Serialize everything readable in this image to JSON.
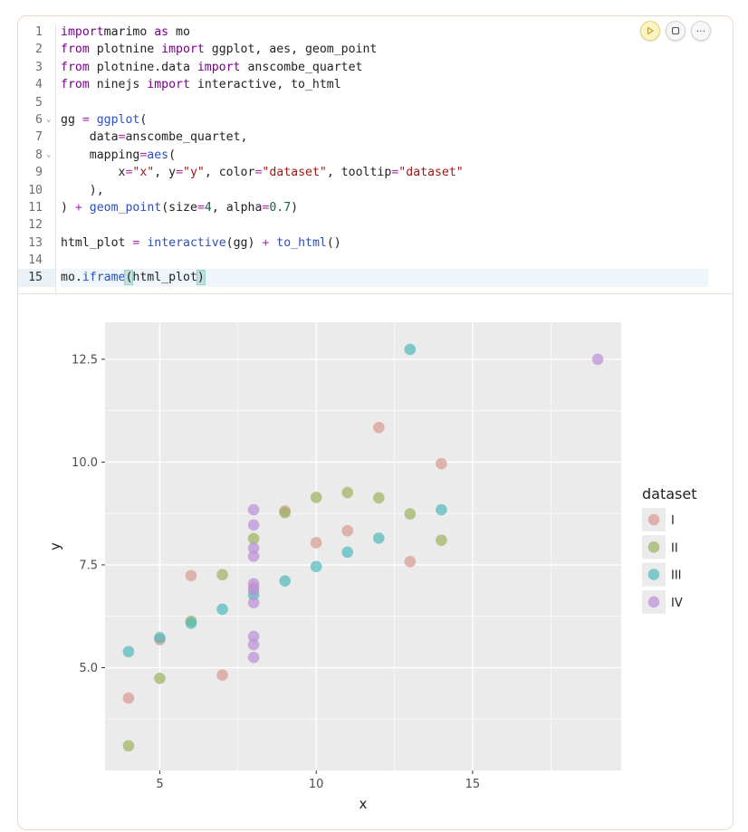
{
  "cell": {
    "actions": [
      {
        "name": "run-cell-button",
        "icon": "play-icon"
      },
      {
        "name": "stop-cell-button",
        "icon": "stop-icon"
      },
      {
        "name": "more-options-button",
        "icon": "ellipsis-icon",
        "label": "···"
      }
    ]
  },
  "editor": {
    "lines": [
      {
        "n": "1",
        "tokens": [
          [
            "kw",
            "import"
          ],
          [
            "",
            "marimo "
          ],
          [
            "kw",
            "as"
          ],
          [
            "",
            " mo"
          ]
        ]
      },
      {
        "n": "2",
        "tokens": [
          [
            "kw",
            "from"
          ],
          [
            "",
            " plotnine "
          ],
          [
            "kw",
            "import"
          ],
          [
            "",
            " ggplot, aes, geom_point"
          ]
        ]
      },
      {
        "n": "3",
        "tokens": [
          [
            "kw",
            "from"
          ],
          [
            "",
            " plotnine.data "
          ],
          [
            "kw",
            "import"
          ],
          [
            "",
            " anscombe_quartet"
          ]
        ]
      },
      {
        "n": "4",
        "tokens": [
          [
            "kw",
            "from"
          ],
          [
            "",
            " ninejs "
          ],
          [
            "kw",
            "import"
          ],
          [
            "",
            " interactive, to_html"
          ]
        ]
      },
      {
        "n": "5",
        "tokens": []
      },
      {
        "n": "6",
        "fold": true,
        "tokens": [
          [
            "",
            "gg "
          ],
          [
            "op",
            "="
          ],
          [
            " fn",
            " ggplot"
          ],
          [
            "",
            "("
          ]
        ]
      },
      {
        "n": "7",
        "tokens": [
          [
            "",
            "    data"
          ],
          [
            "op",
            "="
          ],
          [
            "",
            "anscombe_quartet,"
          ]
        ]
      },
      {
        "n": "8",
        "fold": true,
        "tokens": [
          [
            "",
            "    mapping"
          ],
          [
            "op",
            "="
          ],
          [
            "fn",
            "aes"
          ],
          [
            "",
            "("
          ]
        ]
      },
      {
        "n": "9",
        "tokens": [
          [
            "",
            "        x"
          ],
          [
            "op",
            "="
          ],
          [
            "str",
            "\"x\""
          ],
          [
            "",
            ", y"
          ],
          [
            "op",
            "="
          ],
          [
            "str",
            "\"y\""
          ],
          [
            "",
            ", color"
          ],
          [
            "op",
            "="
          ],
          [
            "str",
            "\"dataset\""
          ],
          [
            "",
            ", tooltip"
          ],
          [
            "op",
            "="
          ],
          [
            "str",
            "\"dataset\""
          ]
        ]
      },
      {
        "n": "10",
        "tokens": [
          [
            "",
            "    ),"
          ]
        ]
      },
      {
        "n": "11",
        "tokens": [
          [
            "",
            ") "
          ],
          [
            "op",
            "+"
          ],
          [
            "",
            " "
          ],
          [
            "fn",
            "geom_point"
          ],
          [
            "",
            "(size"
          ],
          [
            "op",
            "="
          ],
          [
            "num",
            "4"
          ],
          [
            "",
            ", alpha"
          ],
          [
            "op",
            "="
          ],
          [
            "num",
            "0.7"
          ],
          [
            "",
            ")"
          ]
        ]
      },
      {
        "n": "12",
        "tokens": []
      },
      {
        "n": "13",
        "tokens": [
          [
            "",
            "html_plot "
          ],
          [
            "op",
            "="
          ],
          [
            "",
            " "
          ],
          [
            "fn",
            "interactive"
          ],
          [
            "",
            "(gg) "
          ],
          [
            "op",
            "+"
          ],
          [
            "",
            " "
          ],
          [
            "fn",
            "to_html"
          ],
          [
            "",
            "()"
          ]
        ]
      },
      {
        "n": "14",
        "tokens": []
      },
      {
        "n": "15",
        "active": true,
        "tokens": [
          [
            "",
            "mo."
          ],
          [
            "fn",
            "iframe"
          ],
          [
            "br",
            "("
          ],
          [
            "",
            "html_plot"
          ],
          [
            "br",
            ")"
          ]
        ]
      }
    ]
  },
  "colors": {
    "I": "#d99a92",
    "II": "#9cb25e",
    "III": "#4eb9bc",
    "IV": "#bb8fd8",
    "panel": "#ebebeb",
    "grid": "#ffffff"
  },
  "chart_data": {
    "type": "scatter",
    "xlabel": "x",
    "ylabel": "y",
    "xlim": [
      3.25,
      19.75
    ],
    "ylim": [
      2.5,
      13.4
    ],
    "xticks": [
      5,
      10,
      15
    ],
    "xtick_labels": [
      "5",
      "10",
      "15"
    ],
    "yticks": [
      5.0,
      7.5,
      10.0,
      12.5
    ],
    "ytick_labels": [
      "5.0",
      "7.5",
      "10.0",
      "12.5"
    ],
    "grid": true,
    "legend_title": "dataset",
    "legend_position": "right",
    "series": [
      {
        "name": "I",
        "x": [
          10,
          8,
          13,
          9,
          11,
          14,
          6,
          4,
          12,
          7,
          5
        ],
        "y": [
          8.04,
          6.95,
          7.58,
          8.81,
          8.33,
          9.96,
          7.24,
          4.26,
          10.84,
          4.82,
          5.68
        ]
      },
      {
        "name": "II",
        "x": [
          10,
          8,
          13,
          9,
          11,
          14,
          6,
          4,
          12,
          7,
          5
        ],
        "y": [
          9.14,
          8.14,
          8.74,
          8.77,
          9.26,
          8.1,
          6.13,
          3.1,
          9.13,
          7.26,
          4.74
        ]
      },
      {
        "name": "III",
        "x": [
          10,
          8,
          13,
          9,
          11,
          14,
          6,
          4,
          12,
          7,
          5
        ],
        "y": [
          7.46,
          6.77,
          12.74,
          7.11,
          7.81,
          8.84,
          6.08,
          5.39,
          8.15,
          6.42,
          5.73
        ]
      },
      {
        "name": "IV",
        "x": [
          8,
          8,
          8,
          8,
          8,
          8,
          8,
          19,
          8,
          8,
          8
        ],
        "y": [
          6.58,
          5.76,
          7.71,
          8.84,
          8.47,
          7.04,
          5.25,
          12.5,
          5.56,
          7.91,
          6.89
        ]
      }
    ]
  }
}
